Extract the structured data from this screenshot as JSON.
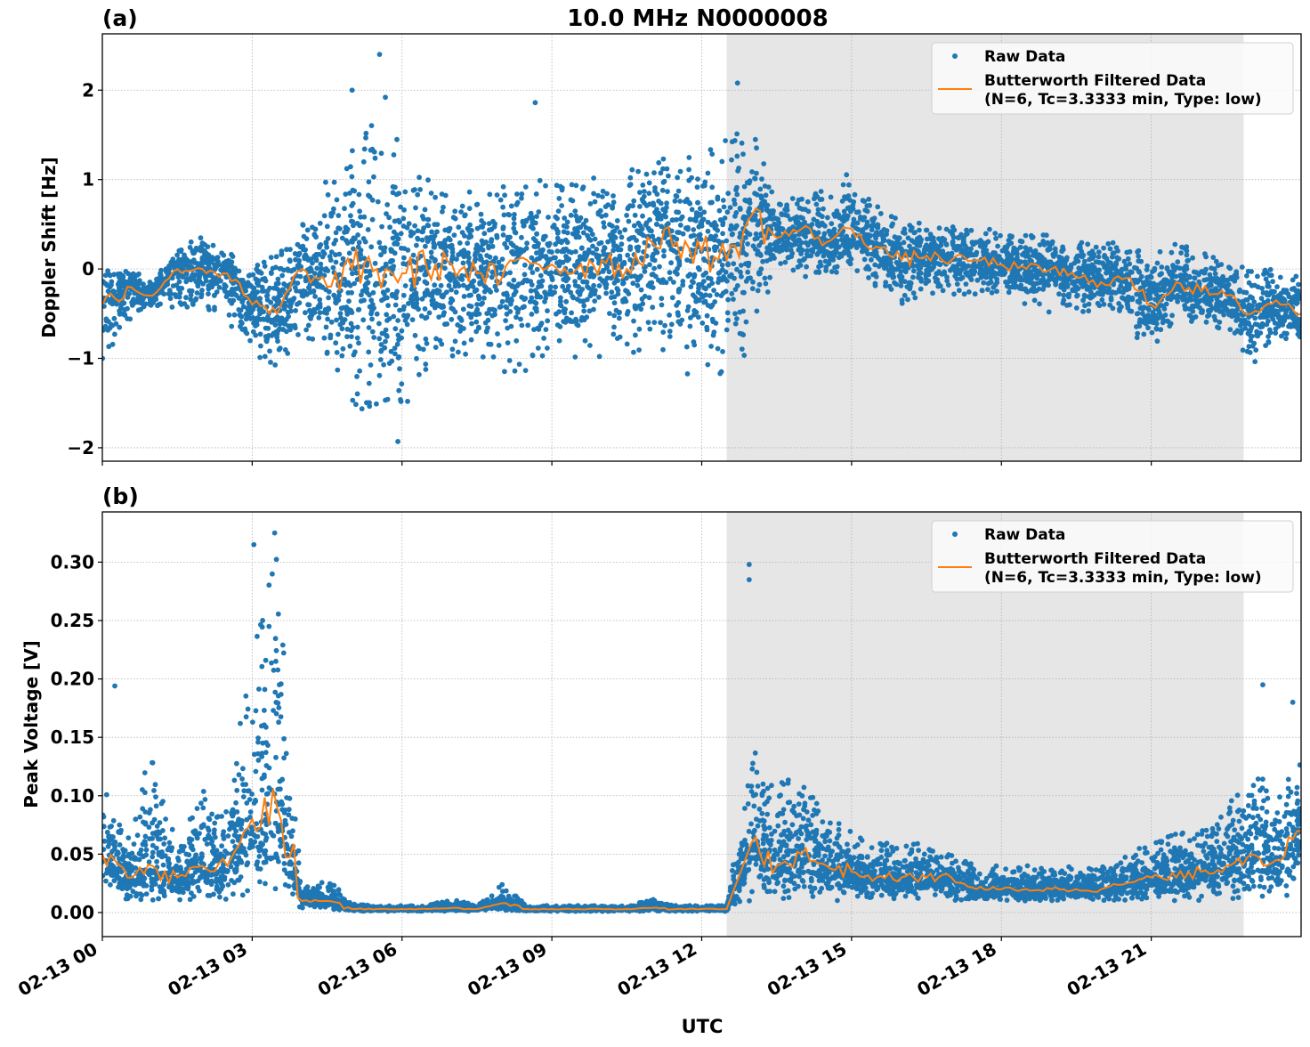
{
  "figure_title": "10.0 MHz N0000008",
  "xlabel": "UTC",
  "x_ticks": [
    "02-13 00",
    "02-13 03",
    "02-13 06",
    "02-13 09",
    "02-13 12",
    "02-13 15",
    "02-13 18",
    "02-13 21"
  ],
  "x_range": [
    "02-13 00:00",
    "02-14 00:00"
  ],
  "shaded_span": [
    "02-13 12:30",
    "02-13 22:51"
  ],
  "colors": {
    "raw": "#1f77b4",
    "filtered": "#ff7f0e",
    "shade": "#e6e6e6",
    "grid": "#b0b0b0"
  },
  "legend": {
    "raw": "Raw Data",
    "filtered_line1": "Butterworth Filtered Data",
    "filtered_line2": "(N=6, Tc=3.3333 min, Type: low)",
    "position": "top-right"
  },
  "chart_data": [
    {
      "type": "scatter+line",
      "panel_label": "(a)",
      "ylabel": "Doppler Shift [Hz]",
      "ylim": [
        -2.15,
        2.63
      ],
      "y_ticks": [
        -2,
        -1,
        0,
        1,
        2
      ],
      "y_tick_labels": [
        "−2",
        "−1",
        "0",
        "1",
        "2"
      ],
      "grid": true,
      "x": [
        "00:00",
        "00:30",
        "01:00",
        "01:30",
        "02:00",
        "02:30",
        "03:00",
        "03:30",
        "04:00",
        "04:30",
        "05:00",
        "05:30",
        "06:00",
        "06:30",
        "07:00",
        "07:30",
        "08:00",
        "08:30",
        "09:00",
        "09:30",
        "10:00",
        "10:30",
        "11:00",
        "11:30",
        "12:00",
        "12:30",
        "13:00",
        "13:30",
        "14:00",
        "14:30",
        "15:00",
        "15:30",
        "16:00",
        "16:30",
        "17:00",
        "17:30",
        "18:00",
        "18:30",
        "19:00",
        "19:30",
        "20:00",
        "20:30",
        "21:00",
        "21:30",
        "22:00",
        "22:30",
        "23:00",
        "23:30",
        "24:00"
      ],
      "filtered": [
        -0.4,
        -0.2,
        -0.3,
        0.0,
        0.0,
        -0.05,
        -0.4,
        -0.5,
        0.0,
        -0.2,
        0.0,
        0.0,
        -0.05,
        0.0,
        0.05,
        -0.05,
        -0.1,
        0.1,
        0.05,
        0.0,
        0.1,
        0.0,
        0.3,
        0.3,
        0.2,
        0.1,
        0.6,
        0.35,
        0.45,
        0.3,
        0.45,
        0.25,
        0.1,
        0.15,
        0.1,
        0.1,
        0.05,
        0.0,
        0.0,
        -0.1,
        -0.15,
        -0.1,
        -0.4,
        -0.15,
        -0.25,
        -0.3,
        -0.5,
        -0.35,
        -0.5
      ],
      "raw_min": [
        -1.2,
        -0.6,
        -0.4,
        -0.45,
        -0.5,
        -0.7,
        -0.9,
        -1.2,
        -0.7,
        -1.0,
        -1.5,
        -1.9,
        -1.7,
        -1.1,
        -1.0,
        -1.0,
        -1.2,
        -1.2,
        -1.0,
        -1.0,
        -1.0,
        -1.0,
        -1.0,
        -1.1,
        -1.3,
        -1.4,
        -1.0,
        0.0,
        -0.1,
        -0.1,
        0.0,
        -0.2,
        -0.4,
        -0.3,
        -0.3,
        -0.3,
        -0.3,
        -0.4,
        -0.5,
        -0.5,
        -0.5,
        -0.6,
        -1.0,
        -0.6,
        -0.7,
        -0.7,
        -1.1,
        -0.8,
        -0.8
      ],
      "raw_max": [
        0.1,
        0.0,
        -0.1,
        0.2,
        0.4,
        0.2,
        0.1,
        0.3,
        0.5,
        1.0,
        1.4,
        1.7,
        1.4,
        1.0,
        0.9,
        0.9,
        1.0,
        1.0,
        1.0,
        1.0,
        1.1,
        1.1,
        1.2,
        1.3,
        1.4,
        1.5,
        1.6,
        0.8,
        0.8,
        0.9,
        1.1,
        0.7,
        0.6,
        0.5,
        0.5,
        0.5,
        0.4,
        0.4,
        0.4,
        0.3,
        0.3,
        0.3,
        0.2,
        0.3,
        0.2,
        0.1,
        0.0,
        0.0,
        -0.1
      ],
      "outliers": [
        [
          "05:33",
          2.4
        ],
        [
          "12:43",
          2.08
        ],
        [
          "05:00",
          2.0
        ],
        [
          "08:40",
          1.86
        ],
        [
          "05:40",
          1.92
        ],
        [
          "05:55",
          -1.93
        ]
      ]
    },
    {
      "type": "scatter+line",
      "panel_label": "(b)",
      "ylabel": "Peak Voltage [V]",
      "ylim": [
        -0.0206,
        0.343
      ],
      "y_ticks": [
        0,
        0.05,
        0.1,
        0.15,
        0.2,
        0.25,
        0.3
      ],
      "y_tick_labels": [
        "0.00",
        "0.05",
        "0.10",
        "0.15",
        "0.20",
        "0.25",
        "0.30"
      ],
      "grid": true,
      "x": [
        "00:00",
        "00:30",
        "01:00",
        "01:30",
        "02:00",
        "02:30",
        "03:00",
        "03:30",
        "04:00",
        "04:30",
        "05:00",
        "05:30",
        "06:00",
        "06:30",
        "07:00",
        "07:30",
        "08:00",
        "08:30",
        "09:00",
        "09:30",
        "10:00",
        "10:30",
        "11:00",
        "11:30",
        "12:00",
        "12:30",
        "13:00",
        "13:30",
        "14:00",
        "14:30",
        "15:00",
        "15:30",
        "16:00",
        "16:30",
        "17:00",
        "17:30",
        "18:00",
        "18:30",
        "19:00",
        "19:30",
        "20:00",
        "20:30",
        "21:00",
        "21:30",
        "22:00",
        "22:30",
        "23:00",
        "23:30",
        "24:00"
      ],
      "filtered": [
        0.05,
        0.03,
        0.04,
        0.03,
        0.04,
        0.04,
        0.08,
        0.09,
        0.01,
        0.01,
        0.003,
        0.003,
        0.003,
        0.003,
        0.004,
        0.003,
        0.008,
        0.003,
        0.003,
        0.003,
        0.003,
        0.003,
        0.004,
        0.003,
        0.003,
        0.003,
        0.06,
        0.04,
        0.05,
        0.04,
        0.035,
        0.03,
        0.03,
        0.03,
        0.03,
        0.02,
        0.02,
        0.02,
        0.02,
        0.02,
        0.02,
        0.025,
        0.03,
        0.03,
        0.035,
        0.04,
        0.05,
        0.045,
        0.07
      ],
      "raw_min": [
        0.02,
        0.01,
        0.01,
        0.01,
        0.01,
        0.01,
        0.01,
        0.02,
        0.003,
        0.003,
        0.001,
        0.001,
        0.001,
        0.001,
        0.001,
        0.001,
        0.002,
        0.001,
        0.001,
        0.001,
        0.001,
        0.001,
        0.001,
        0.001,
        0.001,
        0.001,
        0.01,
        0.01,
        0.01,
        0.01,
        0.01,
        0.01,
        0.01,
        0.01,
        0.01,
        0.01,
        0.01,
        0.01,
        0.01,
        0.01,
        0.01,
        0.01,
        0.01,
        0.01,
        0.01,
        0.01,
        0.01,
        0.01,
        0.02
      ],
      "raw_max": [
        0.12,
        0.06,
        0.15,
        0.06,
        0.11,
        0.09,
        0.23,
        0.32,
        0.02,
        0.03,
        0.008,
        0.006,
        0.006,
        0.006,
        0.012,
        0.006,
        0.025,
        0.006,
        0.006,
        0.006,
        0.006,
        0.006,
        0.012,
        0.006,
        0.006,
        0.006,
        0.15,
        0.11,
        0.12,
        0.09,
        0.07,
        0.06,
        0.06,
        0.06,
        0.05,
        0.04,
        0.04,
        0.04,
        0.04,
        0.04,
        0.04,
        0.05,
        0.06,
        0.07,
        0.08,
        0.09,
        0.12,
        0.11,
        0.13
      ],
      "outliers": [
        [
          "00:15",
          0.194
        ],
        [
          "03:02",
          0.315
        ],
        [
          "03:27",
          0.325
        ],
        [
          "12:57",
          0.298
        ],
        [
          "12:57",
          0.285
        ],
        [
          "23:14",
          0.195
        ],
        [
          "23:50",
          0.18
        ]
      ]
    }
  ]
}
